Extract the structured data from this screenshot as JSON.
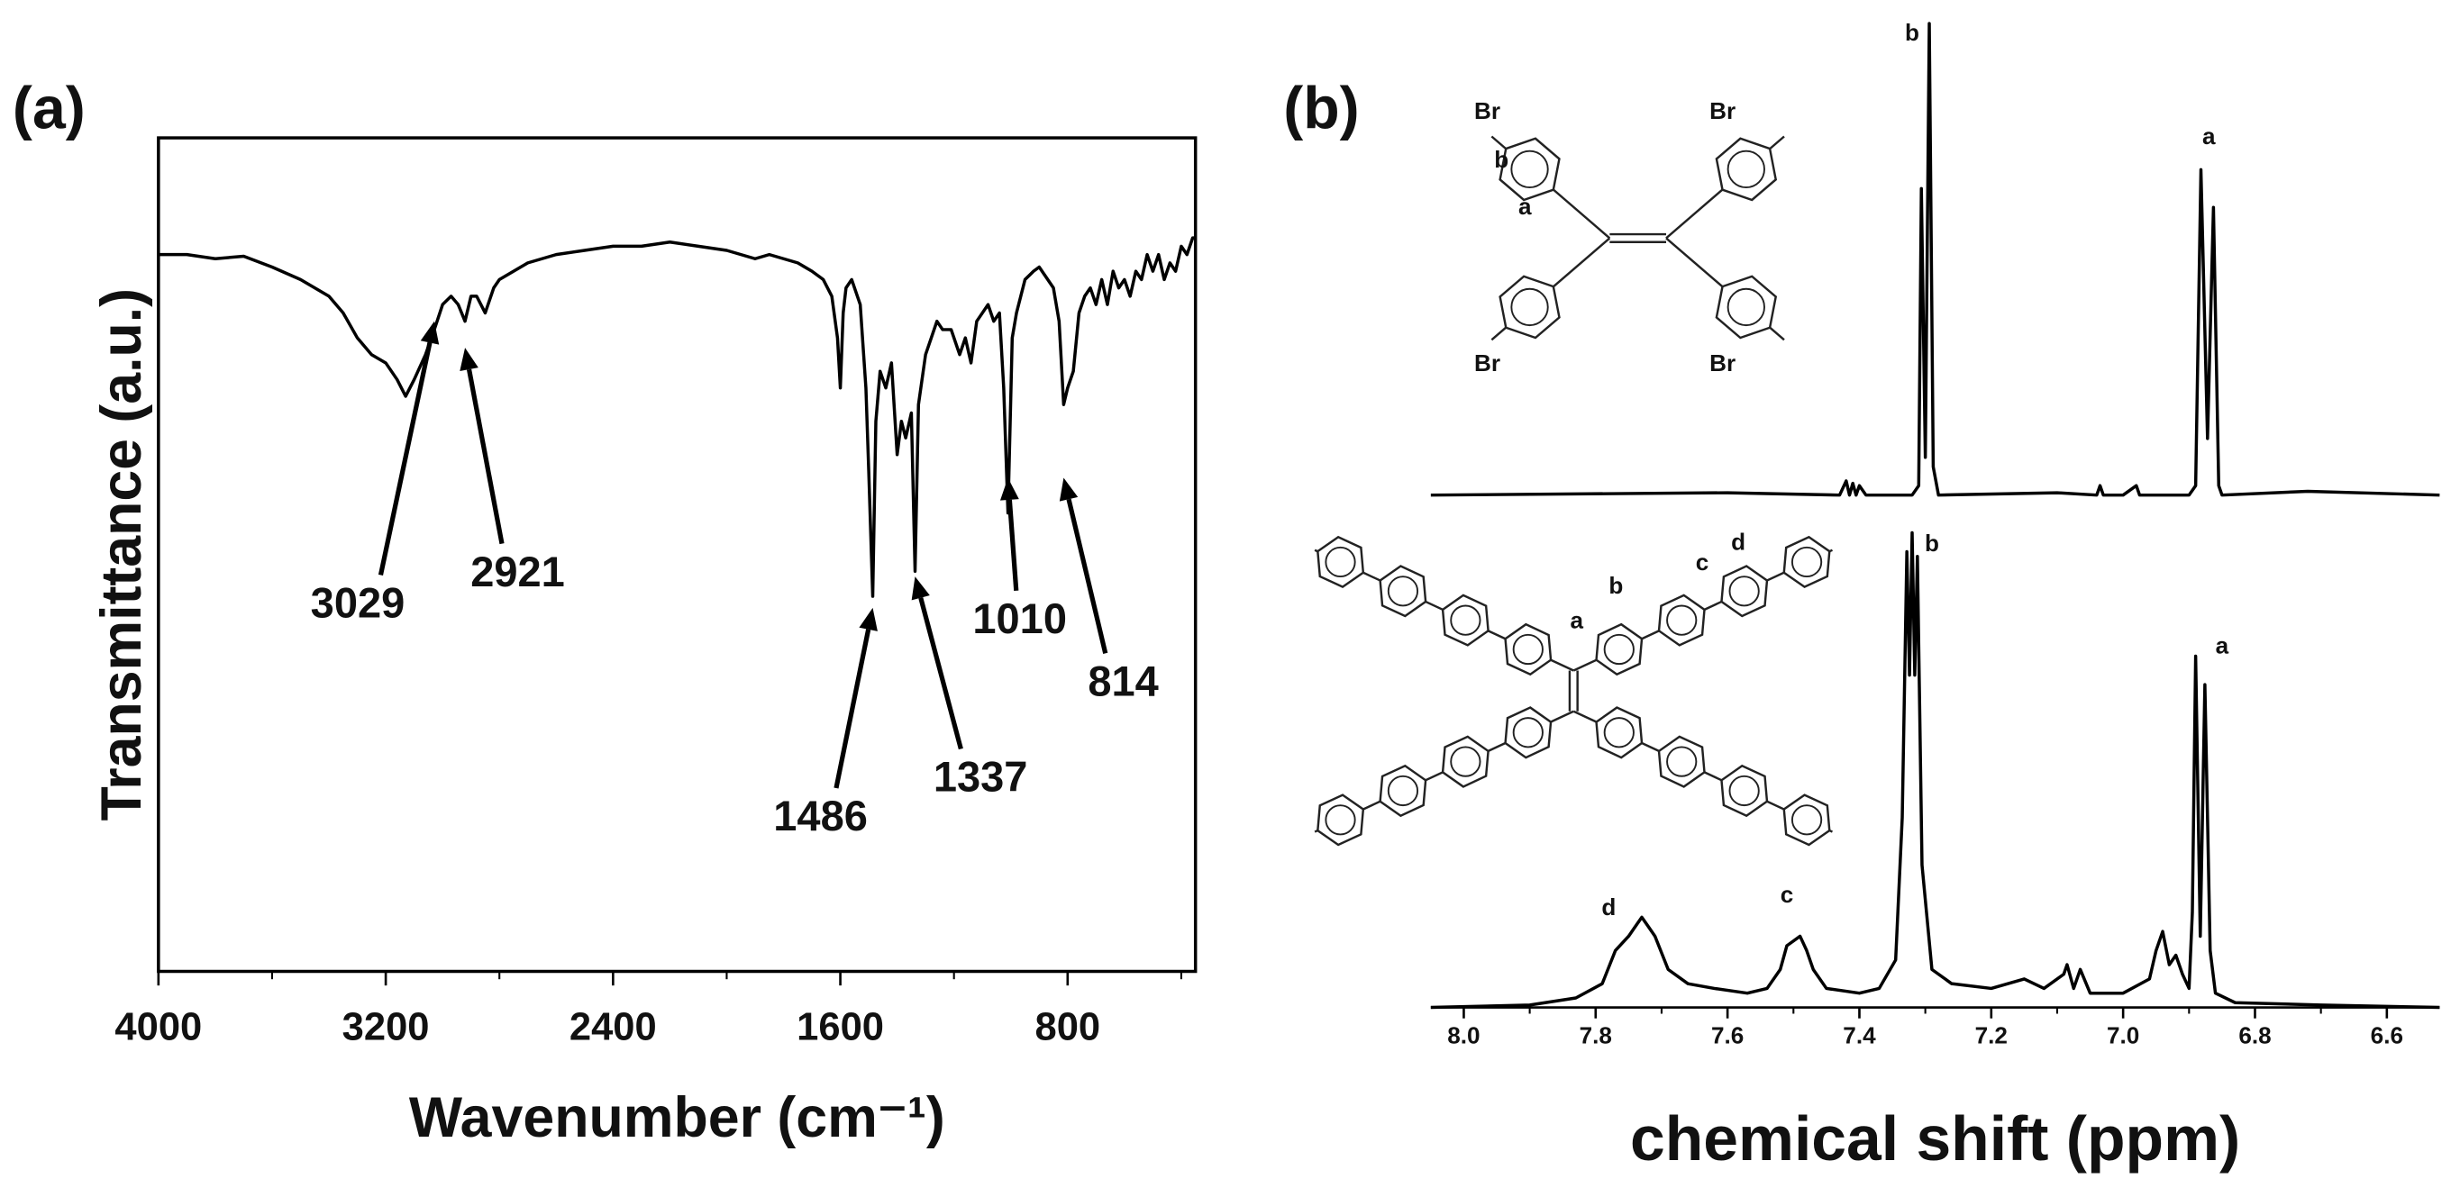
{
  "chart_data": [
    {
      "type": "line",
      "label": "(a)",
      "xlabel": "Wavenumber (cm⁻¹)",
      "ylabel": "Transmittance (a.u.)",
      "xlim": [
        4000,
        350
      ],
      "ylim": [
        0,
        100
      ],
      "xticks": [
        4000,
        3200,
        2400,
        1600,
        800
      ],
      "xminorticks": [
        3600,
        2800,
        2000,
        1200,
        400
      ],
      "color": "#000000",
      "x": [
        4000,
        3900,
        3800,
        3700,
        3600,
        3500,
        3400,
        3350,
        3300,
        3250,
        3200,
        3160,
        3130,
        3100,
        3060,
        3029,
        3000,
        2970,
        2945,
        2921,
        2900,
        2880,
        2850,
        2820,
        2800,
        2700,
        2600,
        2500,
        2400,
        2300,
        2200,
        2100,
        2000,
        1950,
        1900,
        1850,
        1800,
        1750,
        1700,
        1660,
        1630,
        1610,
        1600,
        1590,
        1580,
        1560,
        1530,
        1510,
        1500,
        1486,
        1475,
        1460,
        1440,
        1420,
        1400,
        1385,
        1370,
        1350,
        1337,
        1325,
        1300,
        1280,
        1260,
        1240,
        1210,
        1180,
        1160,
        1140,
        1120,
        1100,
        1080,
        1060,
        1040,
        1025,
        1010,
        995,
        980,
        950,
        920,
        900,
        870,
        850,
        830,
        814,
        800,
        780,
        760,
        740,
        720,
        700,
        680,
        660,
        640,
        620,
        600,
        580,
        560,
        540,
        520,
        500,
        480,
        460,
        440,
        420,
        400,
        380,
        360,
        350
      ],
      "values": [
        86,
        86,
        85.5,
        85.8,
        84.5,
        83,
        81,
        79,
        76,
        74,
        73,
        71,
        69,
        71,
        74,
        77,
        80,
        81,
        80,
        78,
        81,
        81,
        79,
        82,
        83,
        85,
        86,
        86.5,
        87,
        87,
        87.5,
        87,
        86.5,
        86,
        85.5,
        86,
        85.5,
        85,
        84,
        83,
        81,
        76,
        70,
        79,
        82,
        83,
        80,
        70,
        60,
        45,
        66,
        72,
        70,
        73,
        62,
        66,
        64,
        67,
        48,
        68,
        74,
        76,
        78,
        77,
        77,
        74,
        76,
        73,
        78,
        79,
        80,
        78,
        79,
        70,
        55,
        76,
        79,
        83,
        84,
        84.5,
        83,
        82,
        78,
        68,
        70,
        72,
        79,
        81,
        82,
        80,
        83,
        80,
        84,
        82,
        83,
        81,
        84,
        83,
        86,
        84,
        86,
        83,
        85,
        84,
        87,
        86,
        88,
        88
      ],
      "annotations": [
        3029,
        2921,
        1486,
        1337,
        1010,
        814
      ]
    },
    {
      "type": "line",
      "label": "(b)",
      "xlim": [
        8.05,
        6.52
      ],
      "ylim": [
        0,
        100
      ],
      "color": "#000000",
      "x": [
        8.05,
        7.6,
        7.43,
        7.42,
        7.415,
        7.41,
        7.405,
        7.4,
        7.39,
        7.32,
        7.31,
        7.306,
        7.3,
        7.294,
        7.288,
        7.28,
        7.1,
        7.04,
        7.035,
        7.03,
        7.0,
        6.98,
        6.975,
        6.97,
        6.9,
        6.89,
        6.882,
        6.872,
        6.863,
        6.855,
        6.85,
        6.72,
        6.52
      ],
      "values": [
        0,
        0.5,
        0,
        3,
        0,
        2.5,
        0,
        2,
        0,
        0,
        2,
        65,
        8,
        100,
        6,
        0,
        0.5,
        0,
        2,
        0,
        0,
        2,
        0,
        0,
        0,
        2,
        69,
        12,
        61,
        2,
        0,
        0.8,
        0
      ],
      "annotations": [
        {
          "text": "b",
          "x": 7.32
        },
        {
          "text": "a",
          "x": 6.87
        }
      ],
      "structure_labels": [
        "Br",
        "Br",
        "b",
        "a",
        "Br",
        "Br"
      ]
    },
    {
      "type": "line",
      "xlabel": "chemical shift (ppm)",
      "xlim": [
        8.05,
        6.52
      ],
      "ylim": [
        0,
        100
      ],
      "color": "#000000",
      "xticks": [
        {
          "value": 8,
          "label": "8.0"
        },
        7.8,
        7.6,
        7.4,
        7.2,
        {
          "value": 7,
          "label": "7.0"
        },
        6.8,
        6.6
      ],
      "xminorticks": [
        7.9,
        7.7,
        7.5,
        7.3,
        7.1,
        6.9,
        6.7
      ],
      "x": [
        8.05,
        7.9,
        7.83,
        7.79,
        7.77,
        7.75,
        7.74,
        7.73,
        7.72,
        7.71,
        7.69,
        7.66,
        7.62,
        7.57,
        7.54,
        7.52,
        7.51,
        7.5,
        7.49,
        7.48,
        7.47,
        7.45,
        7.4,
        7.37,
        7.345,
        7.335,
        7.328,
        7.324,
        7.32,
        7.316,
        7.312,
        7.305,
        7.29,
        7.26,
        7.2,
        7.15,
        7.12,
        7.09,
        7.085,
        7.075,
        7.065,
        7.05,
        7.0,
        6.96,
        6.95,
        6.94,
        6.93,
        6.92,
        6.91,
        6.9,
        6.895,
        6.89,
        6.883,
        6.876,
        6.868,
        6.86,
        6.83,
        6.7,
        6.52
      ],
      "values": [
        0,
        0.5,
        2,
        5,
        12,
        15,
        17,
        19,
        17,
        15,
        8,
        5,
        4,
        3,
        4,
        8,
        13,
        14,
        15,
        12,
        8,
        4,
        3,
        4,
        10,
        40,
        96,
        70,
        100,
        70,
        95,
        30,
        8,
        5,
        4,
        6,
        4,
        7,
        9,
        4,
        8,
        3,
        3,
        6,
        12,
        16,
        9,
        11,
        7,
        4,
        20,
        74,
        15,
        68,
        12,
        3,
        1,
        0.5,
        0
      ],
      "annotations": [
        {
          "text": "d",
          "x": 7.78
        },
        {
          "text": "c",
          "x": 7.51
        },
        {
          "text": "b",
          "x": 7.29
        },
        {
          "text": "a",
          "x": 6.85
        }
      ],
      "structure_labels": [
        "a",
        "b",
        "c",
        "d"
      ]
    }
  ]
}
